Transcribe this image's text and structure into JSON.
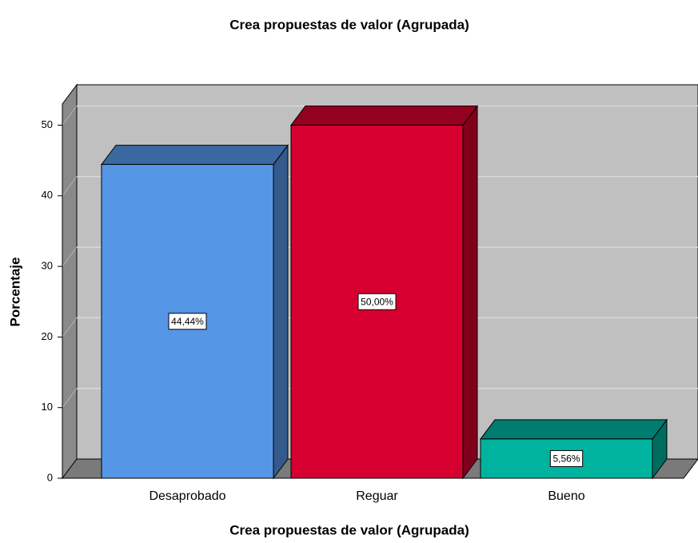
{
  "chart_data": {
    "type": "bar3d",
    "title": "Crea propuestas de valor (Agrupada)",
    "x_label": "Crea propuestas de valor (Agrupada)",
    "y_label": "Porcentaje",
    "categories": [
      "Desaprobado",
      "Reguar",
      "Bueno"
    ],
    "values": [
      44.44,
      50.0,
      5.56
    ],
    "value_labels": [
      "44,44%",
      "50,00%",
      "5,56%"
    ],
    "colors": [
      "#5596e6",
      "#d5002f",
      "#00b39e"
    ],
    "ylim": [
      0,
      53
    ],
    "yticks": [
      0,
      10,
      20,
      30,
      40,
      50
    ],
    "grid": true
  }
}
